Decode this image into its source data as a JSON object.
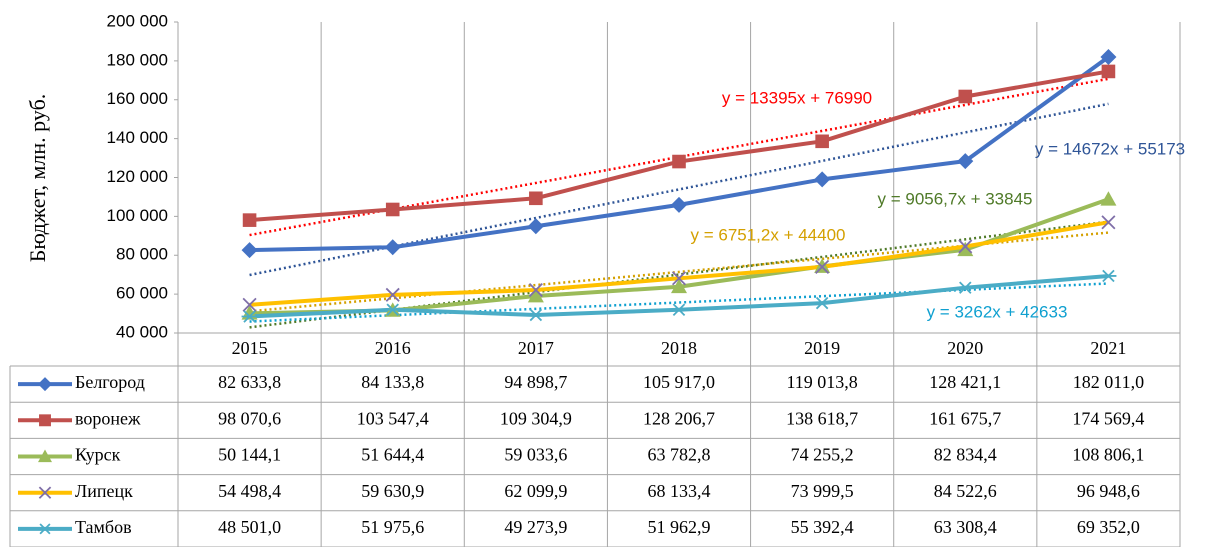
{
  "chart_data": {
    "type": "line",
    "y_axis_label": "Бюджет, млн. руб.",
    "categories": [
      "2015",
      "2016",
      "2017",
      "2018",
      "2019",
      "2020",
      "2021"
    ],
    "ylim": [
      40000,
      200000
    ],
    "yticks": [
      {
        "value": 40000,
        "label": "40 000"
      },
      {
        "value": 60000,
        "label": "60 000"
      },
      {
        "value": 80000,
        "label": "80 000"
      },
      {
        "value": 100000,
        "label": "100 000"
      },
      {
        "value": 120000,
        "label": "120 000"
      },
      {
        "value": 140000,
        "label": "140 000"
      },
      {
        "value": 160000,
        "label": "160 000"
      },
      {
        "value": 180000,
        "label": "180 000"
      },
      {
        "value": 200000,
        "label": "200 000"
      }
    ],
    "grid": false,
    "series": [
      {
        "name": "Белгород",
        "color": "#4472c4",
        "marker": "diamond",
        "trendline_label": "y = 14672x + 55173",
        "trendline_color": "#2f5597",
        "values": [
          82633.8,
          84133.8,
          94898.7,
          105917.0,
          119013.8,
          128421.1,
          182011.0
        ],
        "value_labels": [
          "82 633,8",
          "84 133,8",
          "94 898,7",
          "105 917,0",
          "119 013,8",
          "128 421,1",
          "182 011,0"
        ]
      },
      {
        "name": "воронеж",
        "color": "#c0504d",
        "marker": "square",
        "trendline_label": "y = 13395x + 76990",
        "trendline_color": "#ff0000",
        "values": [
          98070.6,
          103547.4,
          109304.9,
          128206.7,
          138618.7,
          161675.7,
          174569.4
        ],
        "value_labels": [
          "98 070,6",
          "103 547,4",
          "109 304,9",
          "128 206,7",
          "138 618,7",
          "161 675,7",
          "174 569,4"
        ]
      },
      {
        "name": "Курск",
        "color": "#9bbb59",
        "marker": "triangle",
        "trendline_label": "y = 9056,7x + 33845",
        "trendline_color": "#4f7a28",
        "values": [
          50144.1,
          51644.4,
          59033.6,
          63782.8,
          74255.2,
          82834.4,
          108806.1
        ],
        "value_labels": [
          "50 144,1",
          "51 644,4",
          "59 033,6",
          "63 782,8",
          "74 255,2",
          "82 834,4",
          "108 806,1"
        ]
      },
      {
        "name": "Липецк",
        "color": "#ffc000",
        "marker": "x",
        "marker_color": "#7f6fa8",
        "trendline_label": "y = 6751,2x + 44400",
        "trendline_color": "#d4a000",
        "values": [
          54498.4,
          59630.9,
          62099.9,
          68133.4,
          73999.5,
          84522.6,
          96948.6
        ],
        "value_labels": [
          "54 498,4",
          "59 630,9",
          "62 099,9",
          "68 133,4",
          "73 999,5",
          "84 522,6",
          "96 948,6"
        ]
      },
      {
        "name": "Тамбов",
        "color": "#4bacc6",
        "marker": "star",
        "trendline_label": "y = 3262x + 42633",
        "trendline_color": "#0fa0d0",
        "values": [
          48501.0,
          51975.6,
          49273.9,
          51962.9,
          55392.4,
          63308.4,
          69352.0
        ],
        "value_labels": [
          "48 501,0",
          "51 975,6",
          "49 273,9",
          "51 962,9",
          "55 392,4",
          "63 308,4",
          "69 352,0"
        ]
      }
    ]
  }
}
